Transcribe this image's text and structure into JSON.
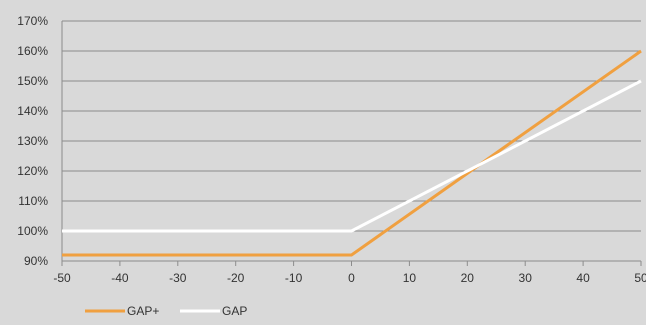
{
  "chart_data": {
    "type": "line",
    "x": [
      -50,
      -40,
      -30,
      -20,
      -10,
      0,
      10,
      20,
      30,
      40,
      50
    ],
    "x_ticks": [
      "-50",
      "-40",
      "-30",
      "-20",
      "-10",
      "0",
      "10",
      "20",
      "30",
      "40",
      "50"
    ],
    "xlim": [
      -50,
      50
    ],
    "y_ticks": [
      "90%",
      "100%",
      "110%",
      "120%",
      "130%",
      "140%",
      "150%",
      "160%",
      "170%"
    ],
    "ylim": [
      90,
      170
    ],
    "y_unit": "%",
    "grid": true,
    "legend_position": "bottom-left",
    "series": [
      {
        "name": "GAP+",
        "color": "#f0a040",
        "points": [
          [
            -50,
            92
          ],
          [
            0,
            92
          ],
          [
            50,
            160
          ]
        ]
      },
      {
        "name": "GAP",
        "color": "#ffffff",
        "points": [
          [
            -50,
            100
          ],
          [
            0,
            100
          ],
          [
            50,
            150
          ]
        ]
      }
    ],
    "colors": {
      "background": "#d9d9d9",
      "grid": "#8c8c8c",
      "axis_text": "#333333"
    }
  }
}
